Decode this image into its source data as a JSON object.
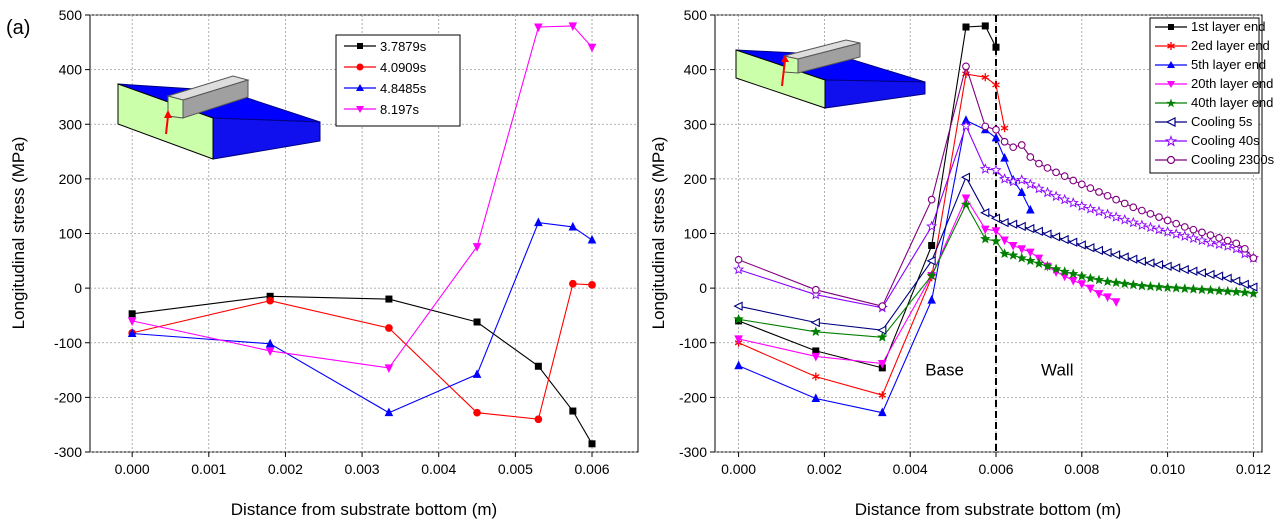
{
  "chart_data": [
    {
      "type": "line",
      "panel_label": "(a)",
      "xlabel": "Distance from substrate bottom (m)",
      "ylabel": "Longitudinal stress (MPa)",
      "xlim": [
        -0.00055,
        0.0066
      ],
      "ylim": [
        -300,
        500
      ],
      "xticks": [
        0,
        0.001,
        0.002,
        0.003,
        0.004,
        0.005,
        0.006
      ],
      "xtick_labels": [
        "0.000",
        "0.001",
        "0.002",
        "0.003",
        "0.004",
        "0.005",
        "0.006"
      ],
      "yticks": [
        -300,
        -200,
        -100,
        0,
        100,
        200,
        300,
        400,
        500
      ],
      "ytick_labels": [
        "-300",
        "-200",
        "-100",
        "0",
        "100",
        "200",
        "300",
        "400",
        "500"
      ],
      "grid": true,
      "legend_position": "top-right",
      "series": [
        {
          "name": "3.7879s",
          "color": "#000000",
          "marker": "square",
          "x": [
            0,
            0.0018,
            0.00335,
            0.0045,
            0.0053,
            0.00575,
            0.006
          ],
          "y": [
            -47,
            -15,
            -20,
            -62,
            -143,
            -225,
            -285
          ]
        },
        {
          "name": "4.0909s",
          "color": "#ff0000",
          "marker": "circle",
          "x": [
            0,
            0.0018,
            0.00335,
            0.0045,
            0.0053,
            0.00575,
            0.006
          ],
          "y": [
            -82,
            -23,
            -73,
            -228,
            -240,
            8,
            6
          ]
        },
        {
          "name": "4.8485s",
          "color": "#0000ff",
          "marker": "triangle-up",
          "x": [
            0,
            0.0018,
            0.00335,
            0.0045,
            0.0053,
            0.00575,
            0.006
          ],
          "y": [
            -83,
            -102,
            -228,
            -158,
            120,
            112,
            88
          ]
        },
        {
          "name": "8.197s",
          "color": "#ff00ff",
          "marker": "triangle-down",
          "x": [
            0,
            0.0018,
            0.00335,
            0.0045,
            0.0053,
            0.00575,
            0.006
          ],
          "y": [
            -60,
            -115,
            -146,
            76,
            478,
            480,
            441
          ]
        }
      ]
    },
    {
      "type": "line",
      "xlabel": "Distance from substrate bottom (m)",
      "ylabel": "Longitudinal stress (MPa)",
      "xlim": [
        -0.00055,
        0.0122
      ],
      "ylim": [
        -300,
        500
      ],
      "xticks": [
        0,
        0.002,
        0.004,
        0.006,
        0.008,
        0.01,
        0.012
      ],
      "xtick_labels": [
        "0.000",
        "0.002",
        "0.004",
        "0.006",
        "0.008",
        "0.010",
        "0.012"
      ],
      "yticks": [
        -300,
        -200,
        -100,
        0,
        100,
        200,
        300,
        400,
        500
      ],
      "ytick_labels": [
        "-300",
        "-200",
        "-100",
        "0",
        "100",
        "200",
        "300",
        "400",
        "500"
      ],
      "grid": true,
      "legend_position": "top-right",
      "vline_x": 0.006,
      "annotations": [
        {
          "text": "Base",
          "x": 0.00435,
          "y": -160
        },
        {
          "text": "Wall",
          "x": 0.00705,
          "y": -160
        }
      ],
      "series": [
        {
          "name": "1st layer end",
          "color": "#000000",
          "marker": "square",
          "fill": true,
          "x": [
            0,
            0.0018,
            0.00335,
            0.0045,
            0.0053,
            0.00575,
            0.006
          ],
          "y": [
            -60,
            -115,
            -146,
            78,
            478,
            480,
            441
          ]
        },
        {
          "name": "2ed layer end",
          "color": "#ff0000",
          "marker": "star6",
          "fill": true,
          "x": [
            0,
            0.0018,
            0.00335,
            0.0045,
            0.0053,
            0.00575,
            0.006,
            0.0062
          ],
          "y": [
            -100,
            -162,
            -196,
            20,
            392,
            386,
            372,
            293
          ]
        },
        {
          "name": "5th layer end",
          "color": "#0000ff",
          "marker": "triangle-up",
          "fill": true,
          "x": [
            0,
            0.0018,
            0.00335,
            0.0045,
            0.0053,
            0.00575,
            0.006,
            0.0062,
            0.0064,
            0.0066,
            0.0068
          ],
          "y": [
            -142,
            -202,
            -228,
            -22,
            307,
            290,
            275,
            238,
            198,
            175,
            143
          ]
        },
        {
          "name": "20th layer end",
          "color": "#ff00ff",
          "marker": "triangle-down",
          "fill": true,
          "x": [
            0,
            0.0018,
            0.00335,
            0.0045,
            0.0053,
            0.00575,
            0.006,
            0.0062,
            0.0064,
            0.0066,
            0.0068,
            0.007,
            0.0072,
            0.0074,
            0.0076,
            0.0078,
            0.008,
            0.0082,
            0.0084,
            0.0086,
            0.0088
          ],
          "y": [
            -93,
            -125,
            -138,
            23,
            165,
            108,
            105,
            88,
            78,
            72,
            66,
            55,
            40,
            30,
            22,
            14,
            8,
            0,
            -10,
            -16,
            -25
          ]
        },
        {
          "name": "40th layer end",
          "color": "#008000",
          "marker": "star5",
          "fill": true,
          "x": [
            0,
            0.0018,
            0.00335,
            0.0045,
            0.0053,
            0.00575,
            0.006,
            0.0062,
            0.0064,
            0.0066,
            0.0068,
            0.007,
            0.0072,
            0.0074,
            0.0076,
            0.0078,
            0.008,
            0.0082,
            0.0084,
            0.0086,
            0.0088,
            0.009,
            0.0092,
            0.0094,
            0.0096,
            0.0098,
            0.01,
            0.0102,
            0.0104,
            0.0106,
            0.0108,
            0.011,
            0.0112,
            0.0114,
            0.0116,
            0.0118,
            0.012
          ],
          "y": [
            -57,
            -80,
            -90,
            23,
            153,
            90,
            86,
            63,
            60,
            55,
            50,
            45,
            40,
            35,
            30,
            26,
            22,
            18,
            15,
            12,
            10,
            8,
            6,
            4,
            3,
            2,
            1,
            0,
            -1,
            -2,
            -3,
            -4,
            -5,
            -6,
            -7,
            -8,
            -10
          ]
        },
        {
          "name": "Cooling 5s",
          "color": "#000080",
          "marker": "triangle-left",
          "fill": false,
          "x": [
            0,
            0.0018,
            0.00335,
            0.0045,
            0.0053,
            0.00575,
            0.006,
            0.0062,
            0.0064,
            0.0066,
            0.0068,
            0.007,
            0.0072,
            0.0074,
            0.0076,
            0.0078,
            0.008,
            0.0082,
            0.0084,
            0.0086,
            0.0088,
            0.009,
            0.0092,
            0.0094,
            0.0096,
            0.0098,
            0.01,
            0.0102,
            0.0104,
            0.0106,
            0.0108,
            0.011,
            0.0112,
            0.0114,
            0.0116,
            0.0118,
            0.012
          ],
          "y": [
            -33,
            -63,
            -77,
            50,
            203,
            138,
            128,
            120,
            117,
            113,
            109,
            104,
            99,
            94,
            89,
            84,
            79,
            74,
            69,
            65,
            61,
            57,
            53,
            49,
            46,
            43,
            40,
            37,
            34,
            31,
            28,
            25,
            22,
            18,
            13,
            7,
            2
          ]
        },
        {
          "name": "Cooling 40s",
          "color": "#8b00ff",
          "marker": "star5",
          "fill": false,
          "x": [
            0,
            0.0018,
            0.00335,
            0.0045,
            0.0053,
            0.00575,
            0.006,
            0.0062,
            0.0064,
            0.0066,
            0.0068,
            0.007,
            0.0072,
            0.0074,
            0.0076,
            0.0078,
            0.008,
            0.0082,
            0.0084,
            0.0086,
            0.0088,
            0.009,
            0.0092,
            0.0094,
            0.0096,
            0.0098,
            0.01,
            0.0102,
            0.0104,
            0.0106,
            0.0108,
            0.011,
            0.0112,
            0.0114,
            0.0116,
            0.0118,
            0.012
          ],
          "y": [
            34,
            -12,
            -36,
            113,
            297,
            218,
            216,
            200,
            195,
            198,
            190,
            182,
            175,
            168,
            162,
            156,
            150,
            145,
            140,
            135,
            130,
            125,
            120,
            115,
            111,
            107,
            103,
            99,
            95,
            91,
            87,
            83,
            80,
            77,
            72,
            63,
            55
          ]
        },
        {
          "name": "Cooling 2300s",
          "color": "#800080",
          "marker": "circle",
          "fill": false,
          "x": [
            0,
            0.0018,
            0.00335,
            0.0045,
            0.0053,
            0.00575,
            0.006,
            0.0062,
            0.0064,
            0.0066,
            0.0068,
            0.007,
            0.0072,
            0.0074,
            0.0076,
            0.0078,
            0.008,
            0.0082,
            0.0084,
            0.0086,
            0.0088,
            0.009,
            0.0092,
            0.0094,
            0.0096,
            0.0098,
            0.01,
            0.0102,
            0.0104,
            0.0106,
            0.0108,
            0.011,
            0.0112,
            0.0114,
            0.0116,
            0.0118,
            0.012
          ],
          "y": [
            52,
            -3,
            -33,
            162,
            406,
            296,
            290,
            268,
            258,
            262,
            240,
            228,
            220,
            212,
            205,
            197,
            190,
            183,
            176,
            169,
            162,
            155,
            148,
            142,
            136,
            130,
            124,
            118,
            112,
            107,
            102,
            97,
            92,
            87,
            82,
            72,
            55
          ]
        }
      ]
    }
  ]
}
